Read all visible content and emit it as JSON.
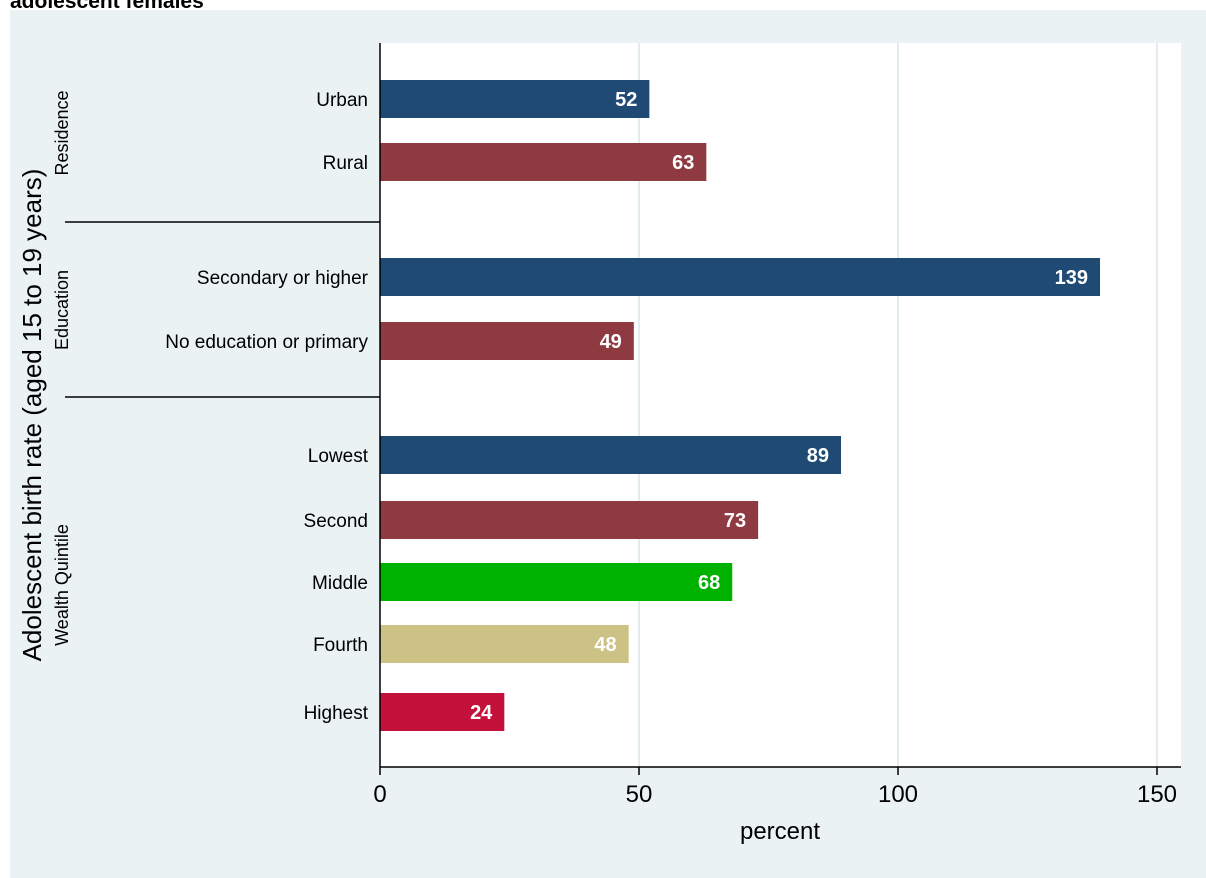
{
  "title": "adolescent females",
  "colors": {
    "navy": "#1f4a73",
    "maroon": "#8e3a40",
    "green": "#00b200",
    "khaki": "#cdc285",
    "crimson": "#c4113b",
    "panel_bg": "#eaf2f3",
    "plot_bg": "#ffffff"
  },
  "chart_data": {
    "type": "bar",
    "orientation": "horizontal",
    "title": "adolescent females",
    "ylabel": "Adolescent birth rate (aged 15 to 19 years)",
    "xlabel": "percent",
    "xlim": [
      0,
      155
    ],
    "xticks": [
      0,
      50,
      100,
      150
    ],
    "grid": true,
    "legend": "none",
    "groups": [
      {
        "name": "Residence",
        "bars": [
          {
            "category": "Urban",
            "value": 52,
            "color": "#1f4a73"
          },
          {
            "category": "Rural",
            "value": 63,
            "color": "#8e3a40"
          }
        ]
      },
      {
        "name": "Education",
        "bars": [
          {
            "category": "Secondary or higher",
            "value": 139,
            "color": "#1f4a73"
          },
          {
            "category": "No education or primary",
            "value": 49,
            "color": "#8e3a40"
          }
        ]
      },
      {
        "name": "Wealth Quintile",
        "bars": [
          {
            "category": "Lowest",
            "value": 89,
            "color": "#1f4a73"
          },
          {
            "category": "Second",
            "value": 73,
            "color": "#8e3a40"
          },
          {
            "category": "Middle",
            "value": 68,
            "color": "#00b200"
          },
          {
            "category": "Fourth",
            "value": 48,
            "color": "#cdc285"
          },
          {
            "category": "Highest",
            "value": 24,
            "color": "#c4113b"
          }
        ]
      }
    ]
  }
}
